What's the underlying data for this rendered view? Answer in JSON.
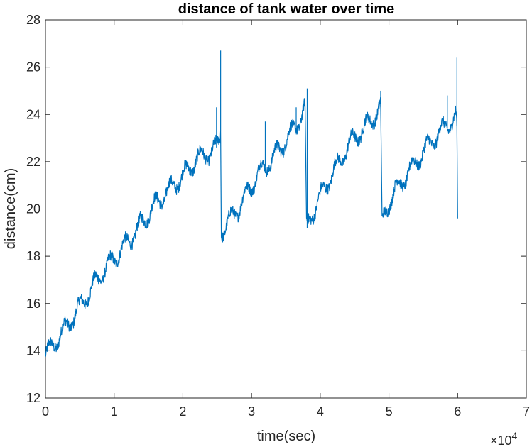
{
  "chart_data": {
    "type": "line",
    "title": "distance of tank water over time",
    "xlabel": "time(sec)",
    "ylabel": "distance(cm)",
    "xlim": [
      0,
      70000
    ],
    "ylim": [
      12,
      28
    ],
    "x_ticks": [
      0,
      10000,
      20000,
      30000,
      40000,
      50000,
      60000,
      70000
    ],
    "x_tick_labels": [
      "0",
      "1",
      "2",
      "3",
      "4",
      "5",
      "6",
      "7"
    ],
    "x_exponent_label": "×10",
    "x_exponent_power": "4",
    "y_ticks": [
      12,
      14,
      16,
      18,
      20,
      22,
      24,
      26,
      28
    ],
    "y_tick_labels": [
      "12",
      "14",
      "16",
      "18",
      "20",
      "22",
      "24",
      "26",
      "28"
    ],
    "grid": false,
    "legend": "none",
    "series_color": "#0072BD",
    "series": [
      {
        "x": [
          0,
          2000,
          4000,
          6000,
          8000,
          10000,
          12000,
          14000,
          16000,
          18000,
          20000,
          22000,
          24000,
          25000,
          25400,
          25500,
          25600,
          26000,
          27000,
          28000,
          29000,
          30000,
          31000,
          32000,
          33000,
          34000,
          35000,
          36000,
          37000,
          37800,
          38000,
          38200,
          38500,
          39000,
          40000,
          41000,
          42000,
          43000,
          44000,
          45000,
          46000,
          47000,
          48000,
          48800,
          49000,
          49200,
          49500,
          50000,
          51000,
          52000,
          53000,
          54000,
          55000,
          56000,
          57000,
          58000,
          59000,
          59700,
          59900,
          60000
        ],
        "y": [
          13.8,
          14.6,
          15.4,
          16.3,
          17.2,
          17.9,
          18.6,
          19.4,
          20.2,
          20.8,
          21.4,
          22.1,
          22.4,
          22.6,
          23.0,
          23.3,
          19.1,
          19.2,
          19.6,
          20.0,
          20.5,
          21.0,
          21.5,
          21.8,
          22.1,
          22.5,
          22.9,
          23.3,
          23.8,
          24.3,
          19.2,
          19.3,
          19.6,
          19.9,
          20.5,
          21.1,
          21.6,
          22.1,
          22.6,
          23.0,
          23.3,
          23.6,
          24.0,
          24.3,
          19.3,
          19.6,
          19.9,
          20.3,
          20.8,
          21.2,
          21.6,
          22.0,
          22.4,
          22.8,
          23.1,
          23.4,
          23.7,
          23.9,
          23.5,
          19.6
        ]
      }
    ],
    "spikes": [
      {
        "x": 24900,
        "y": 24.3
      },
      {
        "x": 25500,
        "y": 26.7
      },
      {
        "x": 32000,
        "y": 23.7
      },
      {
        "x": 36500,
        "y": 24.3
      },
      {
        "x": 38100,
        "y": 25.1
      },
      {
        "x": 48800,
        "y": 25.0
      },
      {
        "x": 58500,
        "y": 24.8
      },
      {
        "x": 59900,
        "y": 26.4
      }
    ]
  }
}
